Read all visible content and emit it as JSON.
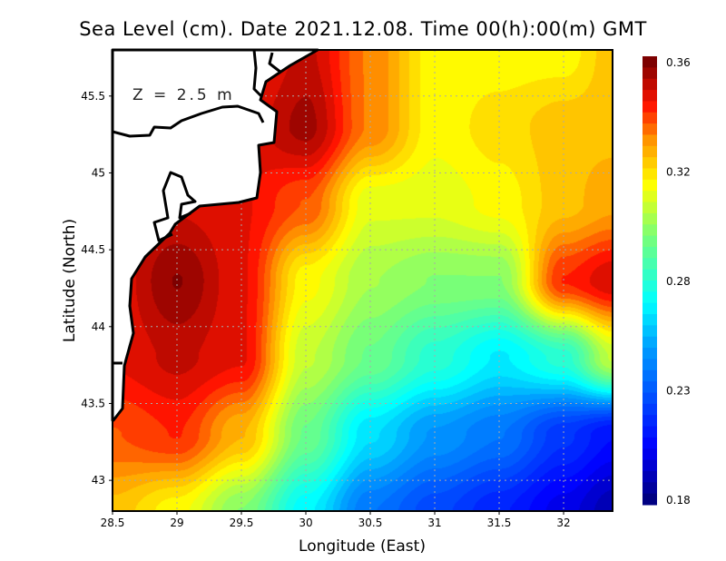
{
  "title": "Sea Level (cm). Date 2021.12.08. Time 00(h):00(m) GMT",
  "depth_label": "Z = 2.5 m",
  "chart_data": {
    "type": "heatmap",
    "title": "Sea Level (cm). Date 2021.12.08. Time 00(h):00(m) GMT",
    "xlabel": "Longitude (East)",
    "ylabel": "Latitude (North)",
    "xlim": [
      28.5,
      32.38
    ],
    "ylim": [
      42.8,
      45.8
    ],
    "xticks": [
      "28.5",
      "29",
      "29.5",
      "30",
      "30.5",
      "31",
      "31.5",
      "32"
    ],
    "xtick_values": [
      28.5,
      29,
      29.5,
      30,
      30.5,
      31,
      31.5,
      32
    ],
    "yticks": [
      "45.5",
      "45",
      "44.5",
      "44",
      "43.5",
      "43"
    ],
    "ytick_values": [
      45.5,
      45,
      44.5,
      44,
      43.5,
      43
    ],
    "grid": true,
    "colorbar": {
      "min": 0.18,
      "max": 0.36,
      "labels": [
        "0.36",
        "0.32",
        "0.28",
        "0.23",
        "0.18"
      ],
      "placement": "right"
    },
    "grid_lon": [
      28.5,
      29,
      29.5,
      30,
      30.5,
      31,
      31.5,
      32,
      32.38
    ],
    "grid_lat": [
      45.8,
      45.3,
      44.8,
      44.3,
      43.8,
      43.3,
      42.8
    ],
    "values": [
      [
        0.34,
        0.34,
        0.34,
        0.35,
        0.33,
        0.31,
        0.31,
        0.31,
        0.32
      ],
      [
        0.34,
        0.34,
        0.345,
        0.355,
        0.33,
        0.31,
        0.315,
        0.32,
        0.32
      ],
      [
        0.345,
        0.348,
        0.345,
        0.335,
        0.305,
        0.305,
        0.31,
        0.32,
        0.325
      ],
      [
        0.345,
        0.358,
        0.345,
        0.31,
        0.295,
        0.29,
        0.29,
        0.34,
        0.348
      ],
      [
        0.345,
        0.35,
        0.345,
        0.3,
        0.285,
        0.27,
        0.258,
        0.27,
        0.3
      ],
      [
        0.335,
        0.34,
        0.322,
        0.285,
        0.255,
        0.24,
        0.232,
        0.215,
        0.205
      ],
      [
        0.32,
        0.31,
        0.29,
        0.26,
        0.232,
        0.22,
        0.21,
        0.198,
        0.188
      ]
    ]
  }
}
